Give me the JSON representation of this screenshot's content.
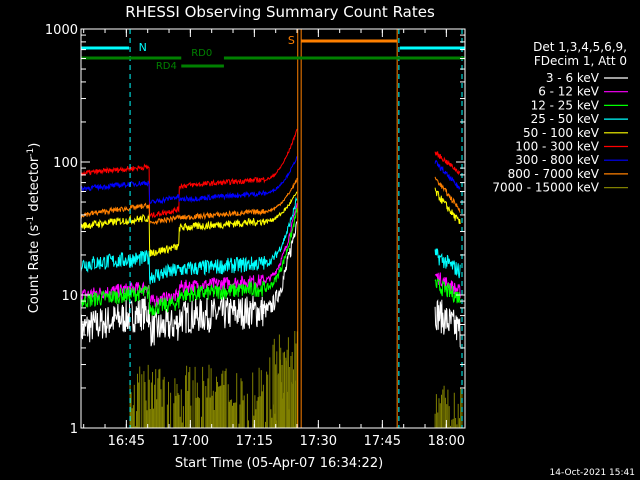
{
  "chart_data": {
    "type": "line",
    "title": "RHESSI Observing Summary Count Rates",
    "xlabel": "Start Time (05-Apr-07 16:34:22)",
    "ylabel_main": "Count Rate (s",
    "ylabel_sup1": "-1",
    "ylabel_mid": " detector",
    "ylabel_sup2": "-1",
    "ylabel_end": ")",
    "yscale": "log",
    "ylim": [
      1,
      1000
    ],
    "xlim_minutes": [
      0,
      90
    ],
    "x_ticks": [
      {
        "m": 10.63,
        "label": "16:45"
      },
      {
        "m": 25.63,
        "label": "17:00"
      },
      {
        "m": 40.63,
        "label": "17:15"
      },
      {
        "m": 55.63,
        "label": "17:30"
      },
      {
        "m": 70.63,
        "label": "17:45"
      },
      {
        "m": 85.63,
        "label": "18:00"
      }
    ],
    "y_ticks": [
      {
        "v": 1,
        "label": "1"
      },
      {
        "v": 10,
        "label": "10"
      },
      {
        "v": 100,
        "label": "100"
      },
      {
        "v": 1000,
        "label": "1000"
      }
    ],
    "legend_header": [
      "Det 1,3,4,5,6,9,",
      "FDecim 1, Att 0"
    ],
    "timestamp": "14-Oct-2021 15:41",
    "series": [
      {
        "name": "3 - 6 keV",
        "color": "#ffffff",
        "level": [
          5.5,
          7.5,
          5.5,
          6.8,
          40,
          7.5,
          5.3
        ],
        "noise": 0.13
      },
      {
        "name": "6 - 12 keV",
        "color": "#ff00ff",
        "level": [
          10,
          11.5,
          9,
          11.5,
          50,
          14,
          10.5
        ],
        "noise": 0.05
      },
      {
        "name": "12 - 25 keV",
        "color": "#00ff00",
        "level": [
          9,
          10.5,
          8,
          10,
          45,
          12,
          9.5
        ],
        "noise": 0.06
      },
      {
        "name": "25 - 50 keV",
        "color": "#00ffff",
        "level": [
          17,
          19,
          14,
          15.5,
          55,
          20,
          15
        ],
        "noise": 0.06
      },
      {
        "name": "50 - 100 keV",
        "color": "#ffff00",
        "level": [
          33,
          38,
          21,
          32,
          60,
          60,
          34
        ],
        "noise": 0.03
      },
      {
        "name": "100 - 300 keV",
        "color": "#ff0000",
        "level": [
          82,
          92,
          40,
          66,
          180,
          118,
          82
        ],
        "noise": 0.02
      },
      {
        "name": "300 - 800 keV",
        "color": "#0000ff",
        "level": [
          63,
          70,
          50,
          52,
          110,
          100,
          62
        ],
        "noise": 0.02
      },
      {
        "name": "800 - 7000 keV",
        "color": "#ff8000",
        "level": [
          40,
          47,
          35,
          38,
          75,
          76,
          43
        ],
        "noise": 0.02
      },
      {
        "name": "7000 - 15000 keV",
        "color": "#808000",
        "level": [
          1,
          1,
          1,
          1,
          4,
          1,
          1
        ],
        "noise": 0
      }
    ],
    "annotations": {
      "night": {
        "label": "N",
        "color": "#00ffff"
      },
      "saa": {
        "label": "S",
        "color": "#ff8000"
      },
      "rd0": {
        "label": "RD0",
        "color": "#008000"
      },
      "rd4": {
        "label": "RD4",
        "color": "#008000"
      }
    }
  }
}
